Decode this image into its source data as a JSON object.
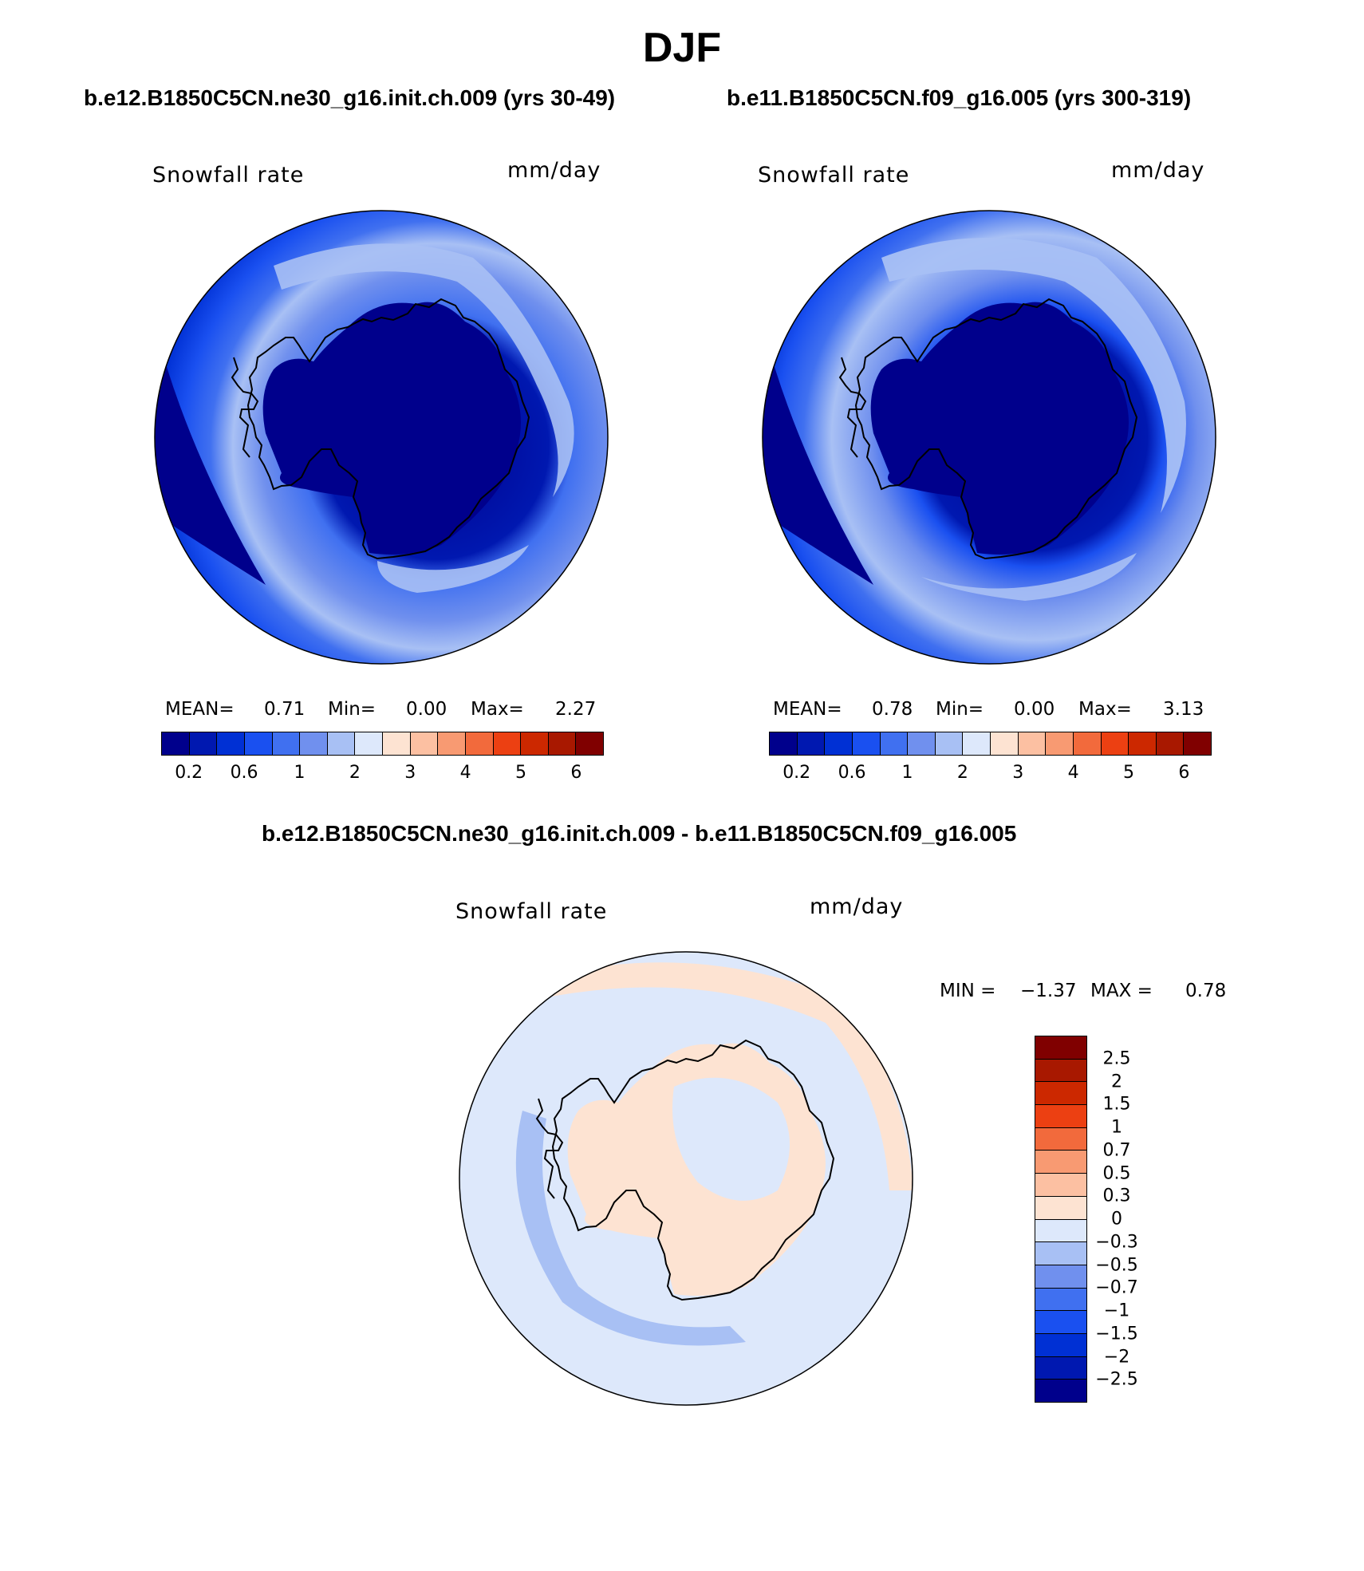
{
  "page_title": "DJF",
  "colors": {
    "abs": [
      "#00008c",
      "#0018b0",
      "#0030d4",
      "#1a50f0",
      "#4070f0",
      "#7090ee",
      "#a8c0f4",
      "#dde8fb",
      "#fde3d2",
      "#fcc0a2",
      "#f89a72",
      "#f26a3c",
      "#ec4012",
      "#cc2800",
      "#a81800",
      "#800000"
    ],
    "diff": [
      "#800000",
      "#a81800",
      "#cc2800",
      "#ec4012",
      "#f26a3c",
      "#f89a72",
      "#fcc0a2",
      "#fde3d2",
      "#dde8fb",
      "#a8c0f4",
      "#7090ee",
      "#4070f0",
      "#1a50f0",
      "#0030d4",
      "#0018b0",
      "#00008c"
    ]
  },
  "panels": {
    "left": {
      "case": "b.e12.B1850C5CN.ne30_g16.init.ch.009 (yrs 30-49)",
      "variable": "Snowfall rate",
      "units": "mm/day",
      "mean_label": "MEAN=",
      "mean": "0.71",
      "min_label": "Min=",
      "min": "0.00",
      "max_label": "Max=",
      "max": "2.27"
    },
    "right": {
      "case": "b.e11.B1850C5CN.f09_g16.005 (yrs 300-319)",
      "variable": "Snowfall rate",
      "units": "mm/day",
      "mean_label": "MEAN=",
      "mean": "0.78",
      "min_label": "Min=",
      "min": "0.00",
      "max_label": "Max=",
      "max": "3.13"
    },
    "diff": {
      "case": "b.e12.B1850C5CN.ne30_g16.init.ch.009 - b.e11.B1850C5CN.f09_g16.005",
      "variable": "Snowfall rate",
      "units": "mm/day",
      "min_label": "MIN =",
      "min": "−1.37",
      "max_label": "MAX =",
      "max": "0.78"
    }
  },
  "abs_ticks": [
    "0.2",
    "0.6",
    "1",
    "2",
    "3",
    "4",
    "5",
    "6"
  ],
  "diff_ticks": [
    "2.5",
    "2",
    "1.5",
    "1",
    "0.7",
    "0.5",
    "0.3",
    "0",
    "−0.3",
    "−0.5",
    "−0.7",
    "−1",
    "−1.5",
    "−2",
    "−2.5"
  ]
}
